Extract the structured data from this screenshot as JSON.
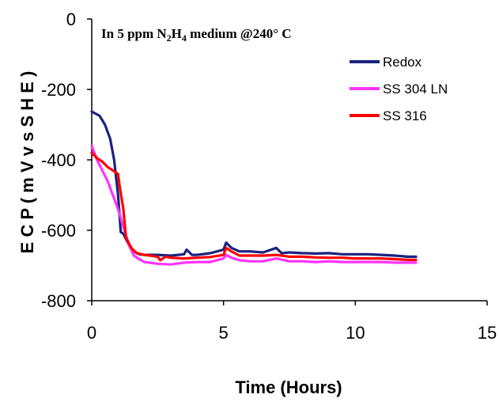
{
  "chart_data": {
    "type": "line",
    "title": "",
    "annotation": {
      "prefix": "In 5 ppm N",
      "sub1": "2",
      "mid": "H",
      "sub2": "4",
      "suffix": " medium @240° C"
    },
    "xlabel": "Time (Hours)",
    "ylabel": "E C P ( m V v s S H E )",
    "xlim": [
      0,
      15
    ],
    "ylim": [
      -800,
      0
    ],
    "xticks": [
      "0",
      "5",
      "10",
      "15"
    ],
    "yticks": [
      "0",
      "-200",
      "-400",
      "-600",
      "-800"
    ],
    "grid": false,
    "legend_position": "top-right",
    "series": [
      {
        "name": "Redox",
        "color": "#1a237e",
        "x": [
          0,
          0.3,
          0.5,
          0.7,
          0.85,
          1.0,
          1.1,
          1.2,
          1.4,
          1.6,
          1.8,
          2.0,
          2.5,
          3.0,
          3.5,
          3.6,
          3.8,
          4.0,
          4.5,
          5.0,
          5.1,
          5.3,
          5.6,
          6.0,
          6.5,
          7.0,
          7.2,
          7.5,
          8.0,
          8.5,
          9.0,
          9.5,
          10.0,
          10.5,
          11.0,
          11.5,
          12.0,
          12.3
        ],
        "y": [
          -263,
          -275,
          -300,
          -340,
          -400,
          -500,
          -605,
          -610,
          -640,
          -660,
          -668,
          -670,
          -670,
          -672,
          -668,
          -655,
          -670,
          -670,
          -665,
          -655,
          -635,
          -650,
          -660,
          -660,
          -663,
          -650,
          -665,
          -663,
          -665,
          -666,
          -665,
          -668,
          -668,
          -668,
          -670,
          -672,
          -675,
          -675
        ]
      },
      {
        "name": "SS 304 LN",
        "color": "#ff33ff",
        "x": [
          0,
          0.2,
          0.4,
          0.6,
          0.8,
          1.0,
          1.2,
          1.4,
          1.6,
          1.8,
          2.0,
          2.5,
          3.0,
          3.5,
          4.0,
          4.5,
          5.0,
          5.1,
          5.3,
          5.6,
          6.0,
          6.5,
          7.0,
          7.5,
          8.0,
          8.5,
          9.0,
          9.5,
          10.0,
          10.5,
          11.0,
          11.5,
          12.0,
          12.3
        ],
        "y": [
          -360,
          -400,
          -430,
          -460,
          -500,
          -540,
          -590,
          -640,
          -672,
          -682,
          -690,
          -695,
          -697,
          -692,
          -690,
          -690,
          -680,
          -670,
          -678,
          -685,
          -688,
          -688,
          -680,
          -688,
          -688,
          -690,
          -688,
          -690,
          -690,
          -690,
          -690,
          -692,
          -692,
          -692
        ]
      },
      {
        "name": "SS 316",
        "color": "#ff0000",
        "x": [
          0,
          0.2,
          0.4,
          0.6,
          0.8,
          1.0,
          1.05,
          1.2,
          1.3,
          1.5,
          1.7,
          2.0,
          2.5,
          2.6,
          2.8,
          3.0,
          3.5,
          4.0,
          4.5,
          5.0,
          5.1,
          5.3,
          5.6,
          6.0,
          6.5,
          7.0,
          7.5,
          8.0,
          8.5,
          9.0,
          9.5,
          10.0,
          10.5,
          11.0,
          11.5,
          12.0,
          12.3
        ],
        "y": [
          -380,
          -395,
          -405,
          -420,
          -430,
          -440,
          -470,
          -540,
          -620,
          -650,
          -665,
          -670,
          -675,
          -685,
          -675,
          -678,
          -680,
          -678,
          -676,
          -670,
          -650,
          -660,
          -672,
          -672,
          -672,
          -670,
          -675,
          -675,
          -677,
          -678,
          -678,
          -680,
          -680,
          -680,
          -682,
          -684,
          -684
        ]
      }
    ]
  }
}
